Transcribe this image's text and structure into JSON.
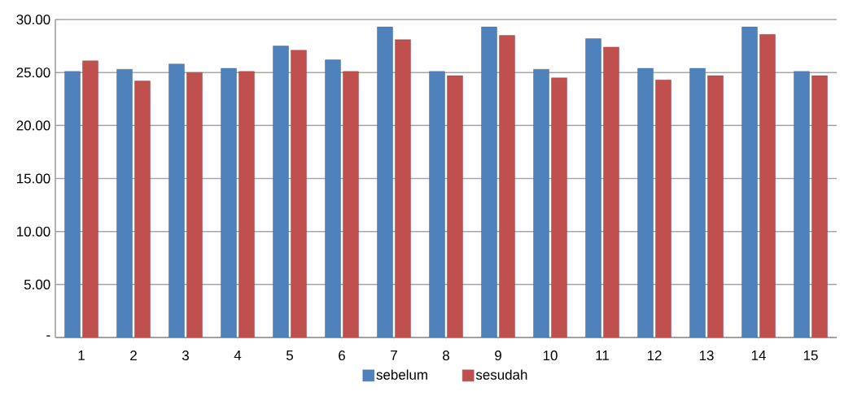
{
  "chart_data": {
    "type": "bar",
    "categories": [
      "1",
      "2",
      "3",
      "4",
      "5",
      "6",
      "7",
      "8",
      "9",
      "10",
      "11",
      "12",
      "13",
      "14",
      "15"
    ],
    "series": [
      {
        "name": "sebelum",
        "color": "#4f81bd",
        "values": [
          25.1,
          25.3,
          25.8,
          25.4,
          27.5,
          26.2,
          29.3,
          25.1,
          29.3,
          25.3,
          28.2,
          25.4,
          25.4,
          29.3,
          25.1
        ]
      },
      {
        "name": "sesudah",
        "color": "#c0504d",
        "values": [
          26.1,
          24.2,
          25.0,
          25.1,
          27.1,
          25.1,
          28.1,
          24.7,
          28.5,
          24.5,
          27.4,
          24.3,
          24.7,
          28.6,
          24.7
        ]
      }
    ],
    "ylim": [
      0,
      30
    ],
    "yticks": [
      {
        "value": 0,
        "label": "-"
      },
      {
        "value": 5,
        "label": "5.00"
      },
      {
        "value": 10,
        "label": "10.00"
      },
      {
        "value": 15,
        "label": "15.00"
      },
      {
        "value": 20,
        "label": "20.00"
      },
      {
        "value": 25,
        "label": "25.00"
      },
      {
        "value": 30,
        "label": "30.00"
      }
    ],
    "grid": "y",
    "legend": "bottom"
  }
}
